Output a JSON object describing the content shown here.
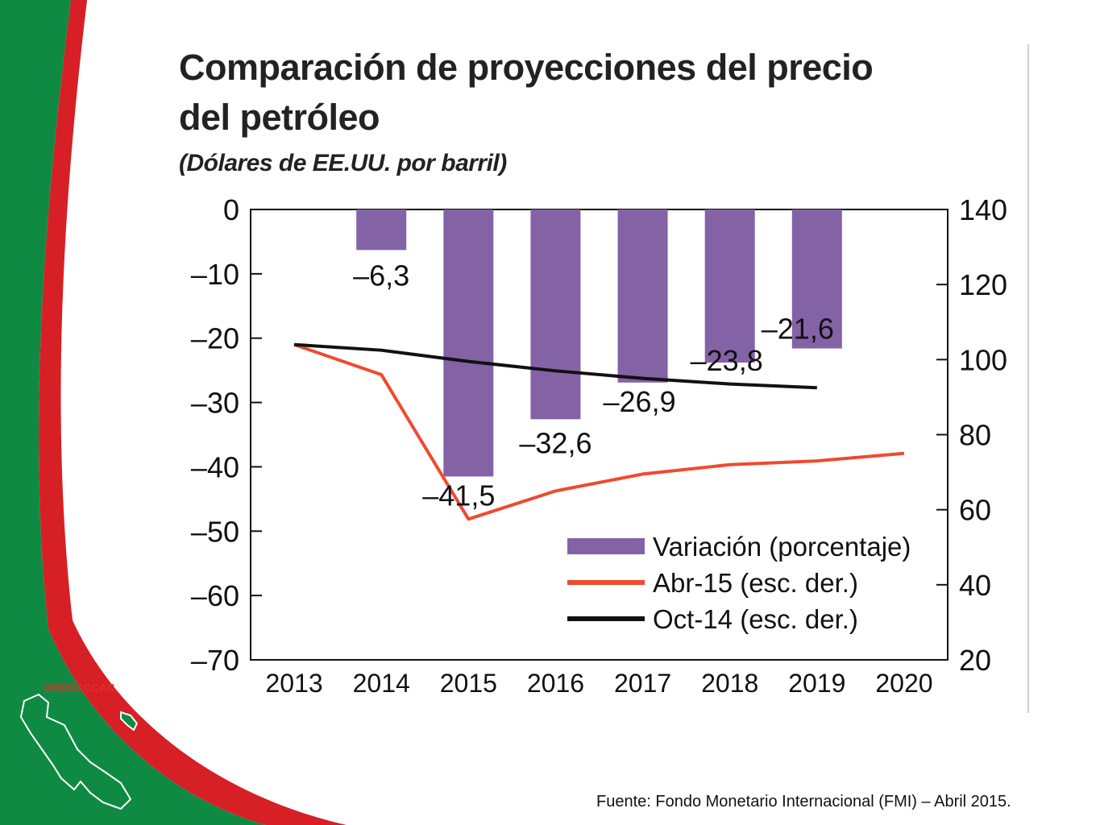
{
  "slide": {
    "colors": {
      "green": "#0f8a43",
      "red": "#d71f26",
      "white": "#ffffff"
    },
    "logo_text": "ORDECCCAC",
    "logo_icon": "central-america-map-icon",
    "source_note": "Fuente: Fondo Monetario Internacional (FMI) – Abril 2015."
  },
  "chart_data": {
    "type": "bar",
    "title": "Comparación de proyecciones del precio del petróleo",
    "title_lines": [
      "Comparación de proyecciones del precio",
      "del petróleo"
    ],
    "subtitle": "(Dólares de EE.UU. por barril)",
    "categories": [
      "2013",
      "2014",
      "2015",
      "2016",
      "2017",
      "2018",
      "2019",
      "2020"
    ],
    "ylim_left": [
      -70,
      0
    ],
    "yticks_left": [
      0,
      -10,
      -20,
      -30,
      -40,
      -50,
      -60,
      -70
    ],
    "yticks_left_labels": [
      "0",
      "–10",
      "–20",
      "–30",
      "–40",
      "–50",
      "–60",
      "–70"
    ],
    "ylim_right": [
      20,
      140
    ],
    "yticks_right": [
      140,
      120,
      100,
      80,
      60,
      40,
      20
    ],
    "yticks_right_labels": [
      "140",
      "120",
      "100",
      "80",
      "60",
      "40",
      "20"
    ],
    "series": [
      {
        "name": "Variación (porcentaje)",
        "kind": "bar",
        "axis": "left",
        "color": "#8462a6",
        "values": [
          null,
          -6.3,
          -41.5,
          -32.6,
          -26.9,
          -23.8,
          -21.6,
          null
        ],
        "labels": [
          null,
          "–6,3",
          "–41,5",
          "–32,6",
          "–26,9",
          "–23,8",
          "–21,6",
          null
        ]
      },
      {
        "name": "Abr-15 (esc. der.)",
        "kind": "line",
        "axis": "right",
        "color": "#f04a2f",
        "values": [
          104,
          96,
          57.5,
          65,
          69.5,
          72,
          73,
          75
        ]
      },
      {
        "name": "Oct-14 (esc. der.)",
        "kind": "line",
        "axis": "right",
        "color": "#111111",
        "values": [
          104,
          102.5,
          99.5,
          97,
          95,
          93.5,
          92.5,
          null
        ]
      }
    ],
    "legend_position": "bottom-right",
    "grid": false
  }
}
